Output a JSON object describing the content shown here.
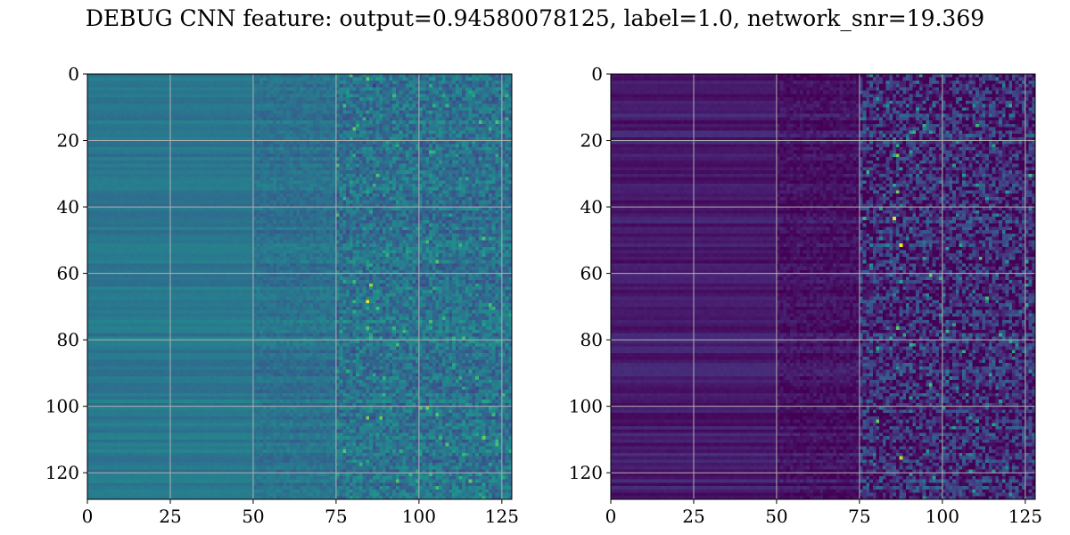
{
  "figure": {
    "title": "DEBUG CNN feature: output=0.94580078125, label=1.0, network_snr=19.369"
  },
  "chart_data": [
    {
      "type": "heatmap",
      "colormap": "viridis",
      "grid": true,
      "grid_color": "#b0b0b0",
      "x_range": [
        0,
        128
      ],
      "y_range": [
        0,
        128
      ],
      "y_inverted": true,
      "rows": 128,
      "cols": 128,
      "x_ticks": [
        0,
        25,
        50,
        75,
        100,
        125
      ],
      "y_ticks": [
        0,
        20,
        40,
        60,
        80,
        100,
        120
      ],
      "x_tick_labels": [
        "0",
        "25",
        "50",
        "75",
        "100",
        "125"
      ],
      "y_tick_labels": [
        "0",
        "20",
        "40",
        "60",
        "80",
        "100",
        "120"
      ],
      "value_range": [
        0,
        1
      ],
      "column_regions": [
        {
          "from": 0,
          "to": 50,
          "mean": 0.4,
          "row_variation": 0.05,
          "pixel_noise": 0.01
        },
        {
          "from": 50,
          "to": 75,
          "mean": 0.38,
          "row_variation": 0.05,
          "pixel_noise": 0.05
        },
        {
          "from": 75,
          "to": 128,
          "mean": 0.38,
          "row_variation": 0.04,
          "pixel_noise": 0.12
        }
      ],
      "hot_spots": [
        {
          "x": 84,
          "y": 68,
          "value": 1.0
        },
        {
          "x": 85,
          "y": 63,
          "value": 0.82
        },
        {
          "x": 84,
          "y": 103,
          "value": 0.8
        },
        {
          "x": 88,
          "y": 103,
          "value": 0.78
        },
        {
          "x": 86,
          "y": 3,
          "value": 0.15
        },
        {
          "x": 80,
          "y": 16,
          "value": 0.75
        },
        {
          "x": 87,
          "y": 30,
          "value": 0.72
        }
      ]
    },
    {
      "type": "heatmap",
      "colormap": "viridis",
      "grid": true,
      "grid_color": "#b0b0b0",
      "x_range": [
        0,
        128
      ],
      "y_range": [
        0,
        128
      ],
      "y_inverted": true,
      "rows": 128,
      "cols": 128,
      "x_ticks": [
        0,
        25,
        50,
        75,
        100,
        125
      ],
      "y_ticks": [
        0,
        20,
        40,
        60,
        80,
        100,
        120
      ],
      "x_tick_labels": [
        "0",
        "25",
        "50",
        "75",
        "100",
        "125"
      ],
      "y_tick_labels": [
        "0",
        "20",
        "40",
        "60",
        "80",
        "100",
        "120"
      ],
      "value_range": [
        0,
        1
      ],
      "column_regions": [
        {
          "from": 0,
          "to": 50,
          "mean": 0.08,
          "row_variation": 0.06,
          "pixel_noise": 0.01
        },
        {
          "from": 50,
          "to": 75,
          "mean": 0.05,
          "row_variation": 0.05,
          "pixel_noise": 0.05
        },
        {
          "from": 75,
          "to": 128,
          "mean": 0.12,
          "row_variation": 0.06,
          "pixel_noise": 0.2
        }
      ],
      "hot_spots": [
        {
          "x": 85,
          "y": 43,
          "value": 0.95
        },
        {
          "x": 87,
          "y": 51,
          "value": 0.98
        },
        {
          "x": 86,
          "y": 24,
          "value": 0.8
        },
        {
          "x": 86,
          "y": 35,
          "value": 0.8
        },
        {
          "x": 86,
          "y": 76,
          "value": 0.75
        },
        {
          "x": 87,
          "y": 115,
          "value": 0.9
        },
        {
          "x": 80,
          "y": 104,
          "value": 0.78
        },
        {
          "x": 96,
          "y": 93,
          "value": 0.7
        }
      ]
    }
  ]
}
